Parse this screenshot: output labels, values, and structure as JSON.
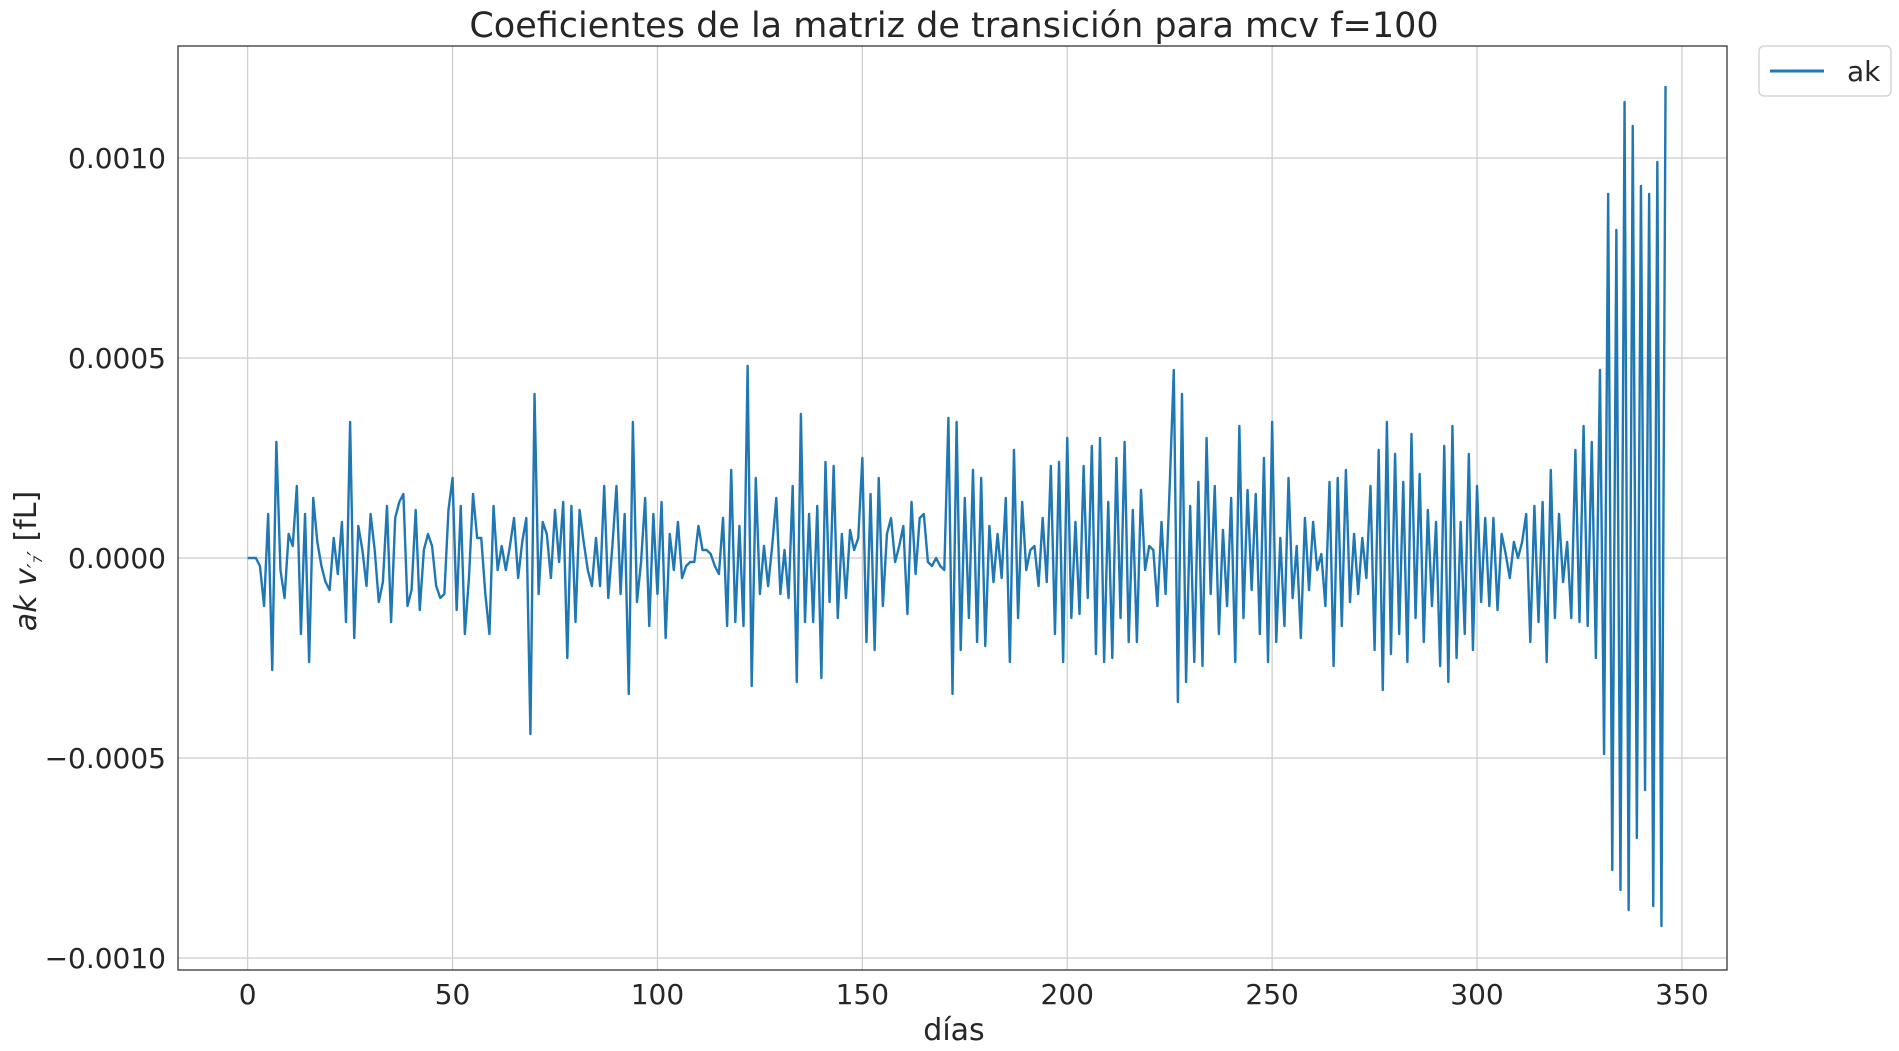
{
  "chart_data": {
    "type": "line",
    "title": "Coeficientes de la matriz de transición para mcv f=100",
    "xlabel": "días",
    "ylabel_italic": "ak v",
    "ylabel_sub": "′₇′",
    "ylabel_unit": " [fL]",
    "xlim": [
      -17,
      361
    ],
    "ylim": [
      -0.00103,
      0.00128
    ],
    "x_ticks": [
      0,
      50,
      100,
      150,
      200,
      250,
      300,
      350
    ],
    "x_tick_labels": [
      "0",
      "50",
      "100",
      "150",
      "200",
      "250",
      "300",
      "350"
    ],
    "y_ticks": [
      -0.001,
      -0.0005,
      0.0,
      0.0005,
      0.001
    ],
    "y_tick_labels": [
      "−0.0010",
      "−0.0005",
      "0.0000",
      "0.0005",
      "0.0010"
    ],
    "grid": true,
    "legend_position": "outside-top-right",
    "series": [
      {
        "name": "ak",
        "color": "#1f77b4",
        "x_start": 0,
        "x_step": 1,
        "values": [
          0,
          0,
          0,
          -2e-05,
          -0.00012,
          0.00011,
          -0.00028,
          0.00029,
          -3e-05,
          -0.0001,
          6e-05,
          3e-05,
          0.00018,
          -0.00019,
          0.00011,
          -0.00026,
          0.00015,
          4e-05,
          -2e-05,
          -6e-05,
          -8e-05,
          5e-05,
          -4e-05,
          9e-05,
          -0.00016,
          0.00034,
          -0.0002,
          8e-05,
          2e-05,
          -7e-05,
          0.00011,
          2e-05,
          -0.00011,
          -6e-05,
          0.00013,
          -0.00016,
          0.0001,
          0.00014,
          0.00016,
          -0.00012,
          -8e-05,
          0.00012,
          -0.00013,
          2e-05,
          6e-05,
          3e-05,
          -7e-05,
          -0.0001,
          -9e-05,
          0.00012,
          0.0002,
          -0.00013,
          0.00013,
          -0.00019,
          -5e-05,
          0.00016,
          5e-05,
          5e-05,
          -9e-05,
          -0.00019,
          0.00013,
          -3e-05,
          3e-05,
          -3e-05,
          3e-05,
          0.0001,
          -5e-05,
          4e-05,
          0.0001,
          -0.00044,
          0.00041,
          -9e-05,
          9e-05,
          6e-05,
          -5e-05,
          0.00012,
          -1e-05,
          0.00014,
          -0.00025,
          0.00013,
          -0.00016,
          0.00012,
          4e-05,
          -3e-05,
          -7e-05,
          5e-05,
          -7e-05,
          0.00018,
          -0.0001,
          3e-05,
          0.00018,
          -9e-05,
          0.00011,
          -0.00034,
          0.00034,
          -0.00011,
          -1e-05,
          0.00015,
          -0.00017,
          0.00011,
          -9e-05,
          0.00014,
          -0.0002,
          6e-05,
          -3e-05,
          9e-05,
          -5e-05,
          -2e-05,
          -1e-05,
          -1e-05,
          8e-05,
          2e-05,
          2e-05,
          1e-05,
          -2e-05,
          -4e-05,
          0.0001,
          -0.00017,
          0.00022,
          -0.00016,
          8e-05,
          -0.00017,
          0.00048,
          -0.00032,
          0.0002,
          -9e-05,
          3e-05,
          -7e-05,
          3e-05,
          0.00015,
          -9e-05,
          2e-05,
          -0.0001,
          0.00018,
          -0.00031,
          0.00036,
          -0.00016,
          0.00011,
          -0.00016,
          0.00013,
          -0.0003,
          0.00024,
          -0.00011,
          0.00023,
          -0.00015,
          6e-05,
          -0.0001,
          7e-05,
          2e-05,
          5e-05,
          0.00025,
          -0.00021,
          0.00016,
          -0.00023,
          0.0002,
          -0.00012,
          6e-05,
          0.0001,
          -1e-05,
          3e-05,
          8e-05,
          -0.00014,
          0.00014,
          -4e-05,
          0.0001,
          0.00011,
          -1e-05,
          -2e-05,
          0,
          -2e-05,
          -3e-05,
          0.00035,
          -0.00034,
          0.00034,
          -0.00023,
          0.00015,
          -0.00015,
          0.00022,
          -0.00021,
          0.0002,
          -0.00022,
          8e-05,
          -6e-05,
          6e-05,
          -5e-05,
          0.00015,
          -0.00026,
          0.00027,
          -0.00015,
          0.00014,
          -3e-05,
          2e-05,
          3e-05,
          -7e-05,
          0.0001,
          -6e-05,
          0.00023,
          -0.00019,
          0.00024,
          -0.00026,
          0.0003,
          -0.00015,
          9e-05,
          -0.00014,
          0.00023,
          -0.0001,
          0.00028,
          -0.00024,
          0.0003,
          -0.00026,
          0.00014,
          -0.00025,
          0.00025,
          -0.00015,
          0.00029,
          -0.00021,
          0.00012,
          -0.00021,
          0.00017,
          -3e-05,
          3e-05,
          2e-05,
          -0.00012,
          9e-05,
          -9e-05,
          0.00018,
          0.00047,
          -0.00036,
          0.00041,
          -0.00031,
          0.00013,
          -0.00026,
          0.00019,
          -0.00027,
          0.0003,
          -9e-05,
          0.00018,
          -0.00019,
          7e-05,
          -0.00012,
          0.00015,
          -0.00026,
          0.00033,
          -0.00015,
          0.00017,
          -8e-05,
          0.00016,
          -0.00019,
          0.00025,
          -0.00026,
          0.00034,
          -0.00021,
          5e-05,
          -0.00017,
          0.0002,
          -0.0001,
          3e-05,
          -0.0002,
          0.0001,
          -8e-05,
          9e-05,
          -3e-05,
          1e-05,
          -0.00012,
          0.00019,
          -0.00027,
          0.0002,
          -0.00017,
          0.00022,
          -0.00011,
          6e-05,
          -9e-05,
          5e-05,
          -5e-05,
          0.00018,
          -0.00023,
          0.00027,
          -0.00033,
          0.00034,
          -0.00024,
          0.00026,
          -0.00019,
          0.00019,
          -0.00026,
          0.00031,
          -0.00015,
          0.00021,
          -0.00021,
          0.00012,
          -0.00012,
          9e-05,
          -0.00027,
          0.00028,
          -0.00031,
          0.00033,
          -0.00025,
          9e-05,
          -0.00019,
          0.00026,
          -0.00023,
          0.00018,
          -0.00011,
          0.0001,
          -0.00012,
          0.0001,
          -0.00013,
          6e-05,
          1e-05,
          -5e-05,
          4e-05,
          0,
          4e-05,
          0.00011,
          -0.00021,
          0.00013,
          -0.00016,
          0.00014,
          -0.00026,
          0.00022,
          -0.00015,
          0.00011,
          -6e-05,
          4e-05,
          -0.00015,
          0.00027,
          -0.00016,
          0.00033,
          -0.00017,
          0.00029,
          -0.00025,
          0.00047,
          -0.00049,
          0.00091,
          -0.00078,
          0.00082,
          -0.00083,
          0.00114,
          -0.00088,
          0.00108,
          -0.0007,
          0.00093,
          -0.00058,
          0.00091,
          -0.00087,
          0.00099,
          -0.00092,
          0.00118
        ]
      }
    ]
  }
}
